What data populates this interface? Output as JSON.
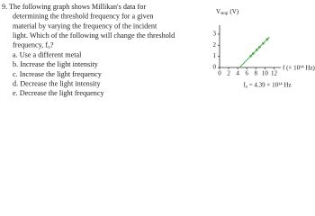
{
  "question": {
    "lines": [
      "9. The following graph shows Millikan's data for",
      "determining the threshold frequency for a given",
      "material by varying the frequency of the incident",
      "light. Which of the following will change the threshold",
      "frequency, f₀?"
    ],
    "options": [
      "a.  Use a different metal",
      "b.  Increase the light intensity",
      "c.  Increase the light frequency",
      "d.  Decrease the light intensity",
      "e.  Decrease the light frequency"
    ]
  },
  "graph": {
    "ylabel": "V",
    "ylabel_sub": "stop",
    "ylabel_unit": "(V)",
    "xlabel": "f (× 10¹⁴ Hz)",
    "annotation": "f₀ = 4.39 × 10¹⁴ Hz",
    "x": [
      6.9,
      7.4,
      8.2,
      8.8,
      9.6,
      10.5
    ],
    "y": [
      1.04,
      1.25,
      1.58,
      1.83,
      2.16,
      2.53
    ],
    "fit_x": [
      4.39,
      11
    ],
    "fit_y": [
      0,
      2.74
    ],
    "color": "#4caf50",
    "xlim": [
      0,
      13.5
    ],
    "ylim": [
      0,
      3.8
    ],
    "xticks": [
      0,
      2,
      4,
      6,
      8,
      10,
      12
    ],
    "yticks": [
      0,
      1,
      2,
      3
    ]
  }
}
